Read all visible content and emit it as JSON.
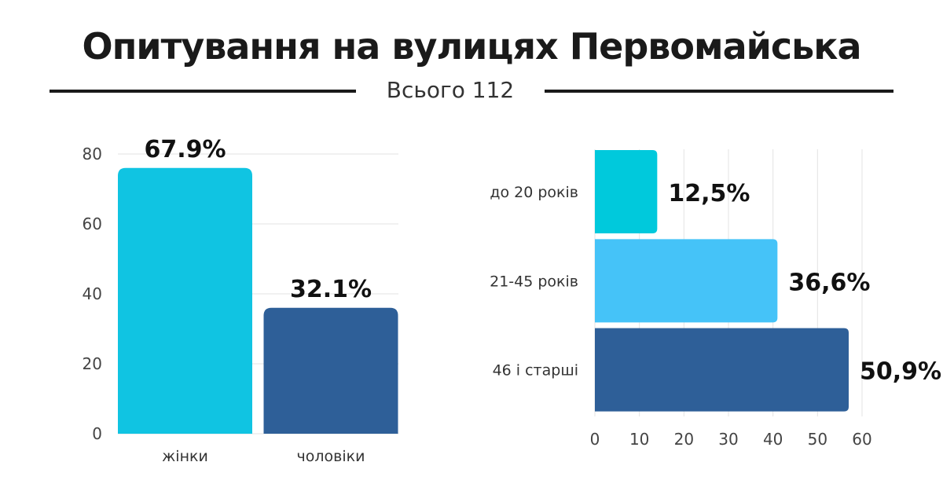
{
  "header": {
    "title": "Опитування на вулицях Первомайська",
    "subtitle": "Всього 112"
  },
  "chart_data": [
    {
      "type": "bar",
      "orientation": "vertical",
      "categories": [
        "жінки",
        "чоловіки"
      ],
      "values": [
        76,
        36
      ],
      "data_labels": [
        "67.9%",
        "32.1%"
      ],
      "ylim": [
        0,
        80
      ],
      "yticks": [
        0,
        20,
        40,
        60,
        80
      ],
      "grid": true,
      "colors": [
        "#10C4E2",
        "#2E5F98"
      ]
    },
    {
      "type": "bar",
      "orientation": "horizontal",
      "categories": [
        "до 20 років",
        "21-45 років",
        "46 і старші"
      ],
      "values": [
        14,
        41,
        57
      ],
      "data_labels": [
        "12,5%",
        "36,6%",
        "50,9%"
      ],
      "xlim": [
        0,
        60
      ],
      "xticks": [
        0,
        10,
        20,
        30,
        40,
        50,
        60
      ],
      "grid": true,
      "colors": [
        "#00C9DC",
        "#45C3F8",
        "#2E5F98"
      ]
    }
  ]
}
